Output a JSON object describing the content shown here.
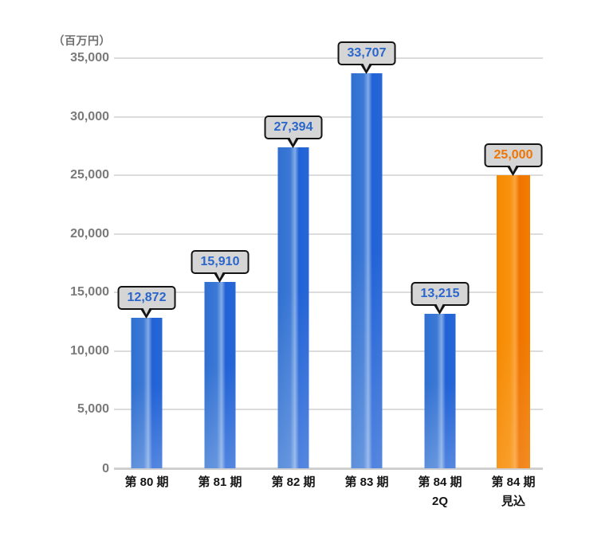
{
  "chart_data": {
    "type": "bar",
    "title": "",
    "unit_label": "（百万円）",
    "ylabel": "百万円",
    "ylim": [
      0,
      35000
    ],
    "y_tick_step": 5000,
    "y_tick_labels": [
      "35,000",
      "30,000",
      "25,000",
      "20,000",
      "15,000",
      "10,000",
      "5,000",
      "0"
    ],
    "grid": "horizontal-on",
    "legend": "none",
    "categories": [
      "第 80 期",
      "第 81 期",
      "第 82 期",
      "第 83 期",
      "第 84 期 2Q",
      "第 84 期 見込"
    ],
    "values": [
      12872,
      15910,
      27394,
      33707,
      13215,
      25000
    ],
    "bars": [
      {
        "label_line1": "第 80 期",
        "label_line2": "",
        "value": 12872,
        "value_label": "12,872",
        "series": "actual"
      },
      {
        "label_line1": "第 81 期",
        "label_line2": "",
        "value": 15910,
        "value_label": "15,910",
        "series": "actual"
      },
      {
        "label_line1": "第 82 期",
        "label_line2": "",
        "value": 27394,
        "value_label": "27,394",
        "series": "actual"
      },
      {
        "label_line1": "第 83 期",
        "label_line2": "",
        "value": 33707,
        "value_label": "33,707",
        "series": "actual"
      },
      {
        "label_line1": "第 84 期",
        "label_line2": "2Q",
        "value": 13215,
        "value_label": "13,215",
        "series": "actual"
      },
      {
        "label_line1": "第 84 期",
        "label_line2": "見込",
        "value": 25000,
        "value_label": "25,000",
        "series": "forecast"
      }
    ],
    "colors": {
      "actual_bar": "#2f6fd0",
      "actual_bar_highlight": "#83abe8",
      "forecast_bar": "#f68800",
      "forecast_bar_highlight": "#fba43c",
      "actual_value_text": "#2a66cc",
      "forecast_value_text": "#ef7505",
      "callout_background": "#d5d5d5",
      "callout_border": "#141414",
      "gridline": "#dcdcdc",
      "axis_text": "#7a7a7a",
      "category_text": "#151515",
      "background": "#ffffff"
    }
  }
}
